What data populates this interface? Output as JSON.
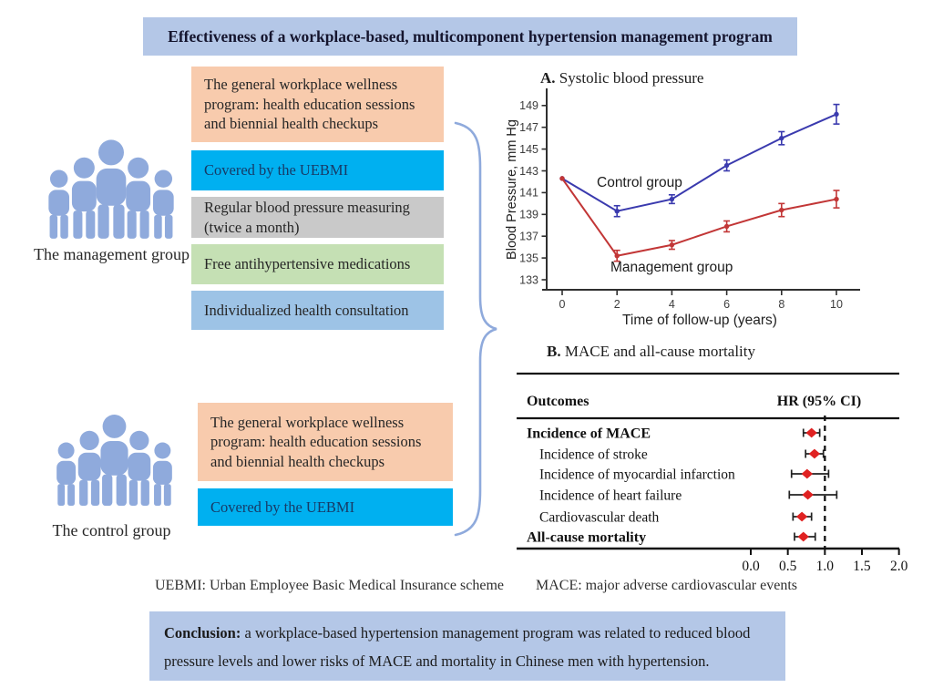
{
  "title_banner": "Effectiveness of a workplace-based, multicomponent hypertension management program",
  "management_group": {
    "label": "The management group",
    "boxes": [
      {
        "text": "The general workplace wellness program: health education sessions and biennial health checkups",
        "color": "#f8cbad"
      },
      {
        "text": "Covered by the UEBMI",
        "color": "#00b0f0"
      },
      {
        "text": "Regular blood pressure measuring (twice a month)",
        "color": "#c9c9c9"
      },
      {
        "text": "Free antihypertensive medications",
        "color": "#c5e0b4"
      },
      {
        "text": "Individualized health consultation",
        "color": "#9dc3e6"
      }
    ]
  },
  "control_group": {
    "label": "The control group",
    "boxes": [
      {
        "text": "The general workplace wellness program: health education sessions and biennial health checkups",
        "color": "#f8cbad"
      },
      {
        "text": "Covered by the UEBMI",
        "color": "#00b0f0"
      }
    ]
  },
  "footnotes": {
    "uebmi": "UEBMI: Urban Employee Basic Medical Insurance scheme",
    "mace": "MACE: major adverse cardiovascular events"
  },
  "conclusion": {
    "label": "Conclusion:",
    "text": "a workplace-based hypertension management program was related to reduced blood pressure levels and lower risks of MACE and mortality in Chinese men with hypertension."
  },
  "colors": {
    "banner_bg": "#b4c7e7",
    "conclusion_bg": "#b4c7e7",
    "people": "#8faadc",
    "brace": "#8faadc",
    "control_line": "#3a3aae",
    "management_line": "#c23636",
    "forest_marker": "#e02222"
  },
  "chart_data": [
    {
      "id": "panel_a",
      "type": "line",
      "title_prefix": "A.",
      "title": "Systolic blood pressure",
      "xlabel": "Time of follow-up (years)",
      "ylabel": "Blood Pressure, mm Hg",
      "x": [
        0,
        2,
        4,
        6,
        8,
        10
      ],
      "xticks": [
        0,
        2,
        4,
        6,
        8,
        10
      ],
      "yticks": [
        133,
        135,
        137,
        139,
        141,
        143,
        145,
        147,
        149
      ],
      "xlim": [
        -0.5,
        11
      ],
      "ylim": [
        132,
        150.5
      ],
      "grid": false,
      "legend": "inline-annotations",
      "series": [
        {
          "name": "Control group",
          "color": "#3a3aae",
          "values": [
            142.3,
            139.3,
            140.4,
            143.5,
            146.0,
            148.2
          ],
          "errors": [
            0,
            0.5,
            0.4,
            0.5,
            0.6,
            0.9
          ]
        },
        {
          "name": "Management group",
          "color": "#c23636",
          "values": [
            142.3,
            135.2,
            136.2,
            137.9,
            139.4,
            140.4
          ],
          "errors": [
            0,
            0.5,
            0.4,
            0.5,
            0.6,
            0.8
          ]
        }
      ]
    },
    {
      "id": "panel_b",
      "type": "forest",
      "title_prefix": "B.",
      "title": "MACE and all-cause mortality",
      "col_headers": [
        "Outcomes",
        "HR (95% CI)"
      ],
      "xticks": [
        0.0,
        0.5,
        1.0,
        1.5,
        2.0
      ],
      "xlim": [
        0,
        2
      ],
      "reference_line": 1.0,
      "rows": [
        {
          "label": "Incidence of MACE",
          "bold": true,
          "indent": false,
          "hr": 0.82,
          "ci_low": 0.71,
          "ci_high": 0.93
        },
        {
          "label": "Incidence of stroke",
          "bold": false,
          "indent": true,
          "hr": 0.86,
          "ci_low": 0.74,
          "ci_high": 0.98
        },
        {
          "label": "Incidence of myocardial infarction",
          "bold": false,
          "indent": true,
          "hr": 0.76,
          "ci_low": 0.55,
          "ci_high": 1.05
        },
        {
          "label": "Incidence of heart failure",
          "bold": false,
          "indent": true,
          "hr": 0.77,
          "ci_low": 0.52,
          "ci_high": 1.16
        },
        {
          "label": "Cardiovascular death",
          "bold": false,
          "indent": true,
          "hr": 0.69,
          "ci_low": 0.57,
          "ci_high": 0.82
        },
        {
          "label": "All-cause mortality",
          "bold": true,
          "indent": false,
          "hr": 0.71,
          "ci_low": 0.59,
          "ci_high": 0.87
        }
      ]
    }
  ]
}
